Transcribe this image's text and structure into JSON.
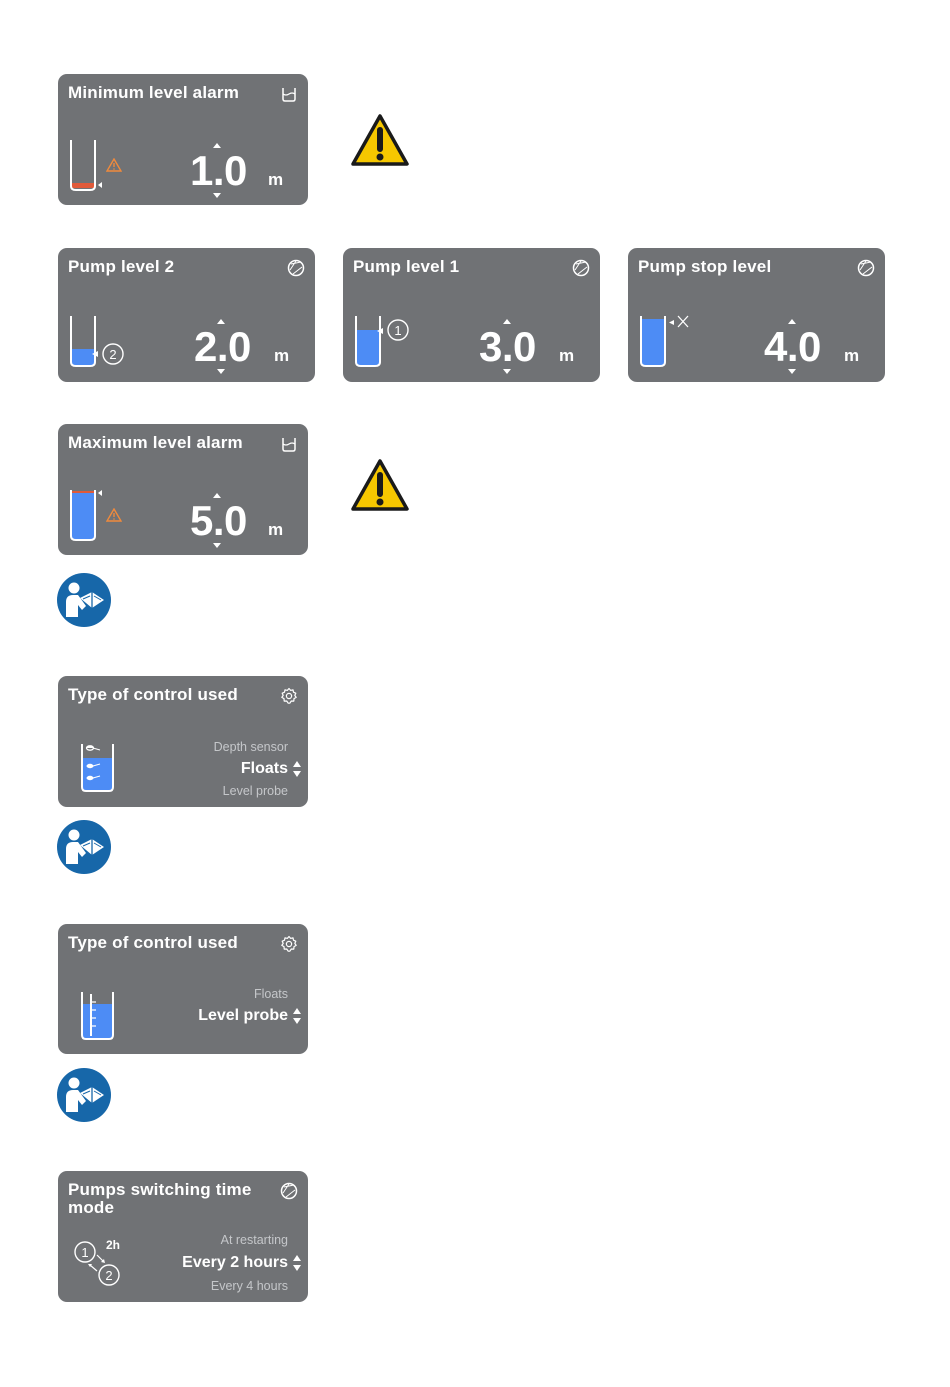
{
  "colors": {
    "panel": "#707275",
    "water": "#4d8cf5",
    "alarm_water": "#e05a3a",
    "warning_yellow": "#f6c700",
    "manual_blue": "#1767a9"
  },
  "min_alarm": {
    "title": "Minimum level alarm",
    "value": "1.0",
    "unit": "m",
    "icon": "tank-icon"
  },
  "pump2": {
    "title": "Pump level 2",
    "value": "2.0",
    "unit": "m",
    "icon": "pump-icon",
    "badge": "2"
  },
  "pump1": {
    "title": "Pump level 1",
    "value": "3.0",
    "unit": "m",
    "icon": "pump-icon",
    "badge": "1"
  },
  "pump_stop": {
    "title": "Pump stop level",
    "value": "4.0",
    "unit": "m",
    "icon": "pump-icon"
  },
  "max_alarm": {
    "title": "Maximum level alarm",
    "value": "5.0",
    "unit": "m",
    "icon": "tank-icon"
  },
  "control_floats": {
    "title": "Type of control used",
    "icon": "gear-icon",
    "option_prev": "Depth sensor",
    "option_selected": "Floats",
    "option_next": "Level probe"
  },
  "control_probe": {
    "title": "Type of control used",
    "icon": "gear-icon",
    "option_prev": "Floats",
    "option_selected": "Level probe"
  },
  "switching": {
    "title": "Pumps switching time mode",
    "icon": "pump-icon",
    "interval": "2h",
    "badge_a": "1",
    "badge_b": "2",
    "option_prev": "At restarting",
    "option_selected": "Every 2 hours",
    "option_next": "Every 4 hours"
  }
}
